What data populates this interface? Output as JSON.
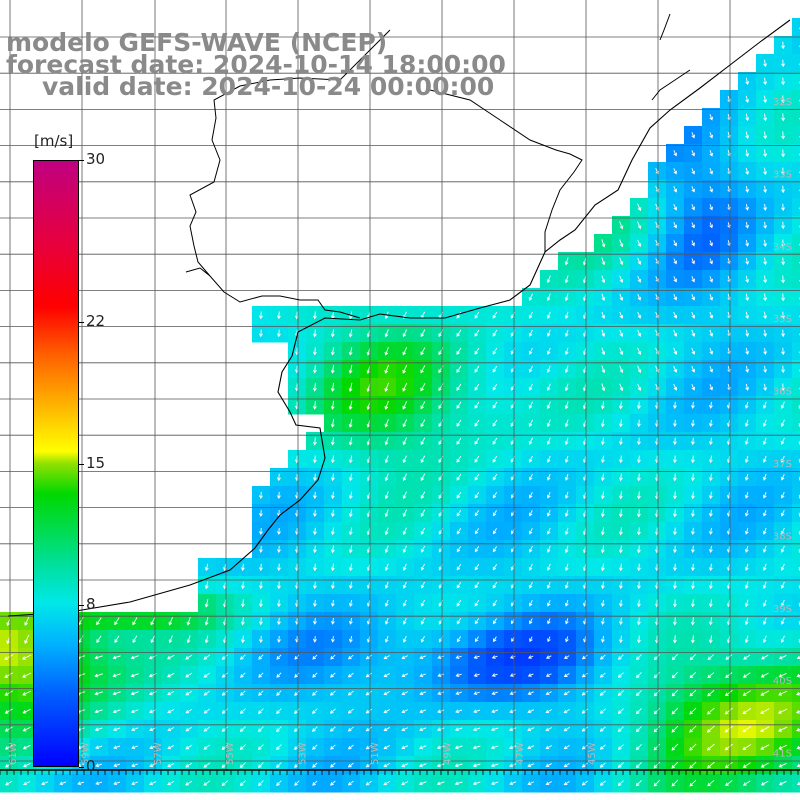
{
  "title": {
    "line1": "modelo GEFS-WAVE (NCEP)",
    "line2": "forecast date: 2024-10-14 18:00:00",
    "line3": "valid date: 2024-10-24 00:00:00"
  },
  "colorbar": {
    "unit": "[m/s]",
    "ticks": [
      {
        "label": "30",
        "value": 30
      },
      {
        "label": "22",
        "value": 22
      },
      {
        "label": "15",
        "value": 15
      },
      {
        "label": "8",
        "value": 8
      },
      {
        "label": "0",
        "value": 0
      }
    ]
  },
  "lat_labels": [
    "32S",
    "33S",
    "34S",
    "35S",
    "36S",
    "37S",
    "38S",
    "39S",
    "40S",
    "41S"
  ],
  "lon_labels": [
    "61W",
    "59W",
    "57W",
    "55W",
    "53W",
    "51W",
    "49W",
    "47W",
    "45W"
  ],
  "colors": {
    "land": "#ffffff",
    "grid": "#555555",
    "coast": "#000000",
    "arrow": "#ffffff"
  },
  "legend_colors": {
    "calm_blue": "#0028ff",
    "mid_cyan": "#00d8f0",
    "green": "#00d800",
    "strong_orange": "#ff8000"
  }
}
